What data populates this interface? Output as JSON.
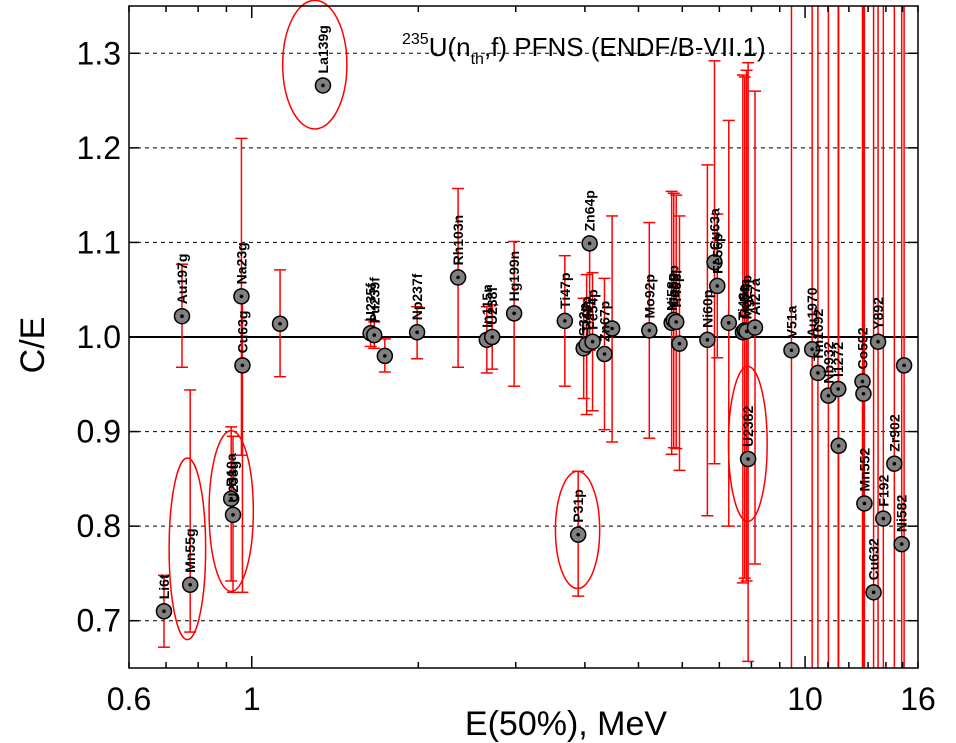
{
  "chart_data": {
    "type": "scatter",
    "title_parts": {
      "pre": "235",
      "main1": "U(n",
      "sub": "th",
      "main2": ",f) PFNS (ENDF/B-VII.1)"
    },
    "xlabel": "E(50%),  MeV",
    "ylabel": "C/E",
    "x_scale": "log",
    "xlim": [
      0.6,
      16
    ],
    "ylim": [
      0.65,
      1.35
    ],
    "x_ticks": [
      {
        "v": 0.6,
        "label": "0.6"
      },
      {
        "v": 1,
        "label": "1"
      },
      {
        "v": 10,
        "label": "10"
      },
      {
        "v": 16,
        "label": "16"
      }
    ],
    "y_ticks": [
      {
        "v": 0.7,
        "label": "0.7"
      },
      {
        "v": 0.8,
        "label": "0.8"
      },
      {
        "v": 0.9,
        "label": "0.9"
      },
      {
        "v": 1.0,
        "label": "1.0"
      },
      {
        "v": 1.1,
        "label": "1.1"
      },
      {
        "v": 1.2,
        "label": "1.2"
      },
      {
        "v": 1.3,
        "label": "1.3"
      }
    ],
    "grid_y": [
      0.7,
      0.8,
      0.9,
      1.1,
      1.2,
      1.3
    ],
    "reference_line": 1.0,
    "circled_labels": [
      "La139g",
      "Mn55g",
      "B10a",
      "U238g",
      "P31p",
      "U2382"
    ],
    "points": [
      {
        "label": "Li6t",
        "x": 0.694,
        "y": 0.71,
        "lo": 0.672,
        "hi": 0.748
      },
      {
        "label": "Au197g",
        "x": 0.748,
        "y": 1.022,
        "lo": 0.968,
        "hi": 1.077
      },
      {
        "label": "Mn55g",
        "x": 0.774,
        "y": 0.738,
        "lo": 0.688,
        "hi": 0.944
      },
      {
        "label": "B10a",
        "x": 0.918,
        "y": 0.829,
        "lo": 0.742,
        "hi": 0.905
      },
      {
        "label": "U238g",
        "x": 0.925,
        "y": 0.812,
        "lo": 0.73,
        "hi": 0.895
      },
      {
        "label": "Na23g",
        "x": 0.958,
        "y": 1.043,
        "lo": 0.875,
        "hi": 1.21
      },
      {
        "label": "Cu63g",
        "x": 0.962,
        "y": 0.97,
        "lo": 0.73,
        "hi": 1.04
      },
      {
        "label": "",
        "x": 1.125,
        "y": 1.014,
        "lo": 0.958,
        "hi": 1.071
      },
      {
        "label": "La139g",
        "x": 1.345,
        "y": 1.266,
        "lo": 1.266,
        "hi": 1.266
      },
      {
        "label": "U235f",
        "x": 1.64,
        "y": 1.004,
        "lo": 0.99,
        "hi": 1.018
      },
      {
        "label": "Pu239f",
        "x": 1.665,
        "y": 1.002,
        "lo": 0.988,
        "hi": 1.016
      },
      {
        "label": "",
        "x": 1.74,
        "y": 0.98,
        "lo": 0.963,
        "hi": 0.998
      },
      {
        "label": "Np237f",
        "x": 1.99,
        "y": 1.005,
        "lo": 0.977,
        "hi": 1.032
      },
      {
        "label": "Rh103n",
        "x": 2.36,
        "y": 1.063,
        "lo": 0.968,
        "hi": 1.157
      },
      {
        "label": "In115n",
        "x": 2.66,
        "y": 0.997,
        "lo": 0.962,
        "hi": 1.032
      },
      {
        "label": "U238f",
        "x": 2.72,
        "y": 1.0,
        "lo": 0.966,
        "hi": 1.034
      },
      {
        "label": "Hg199n",
        "x": 2.98,
        "y": 1.025,
        "lo": 0.948,
        "hi": 1.101
      },
      {
        "label": "Ti47p",
        "x": 3.68,
        "y": 1.017,
        "lo": 0.948,
        "hi": 1.086
      },
      {
        "label": "P31p",
        "x": 3.89,
        "y": 0.791,
        "lo": 0.726,
        "hi": 0.858
      },
      {
        "label": "S32p",
        "x": 3.98,
        "y": 0.988,
        "lo": 0.935,
        "hi": 1.041
      },
      {
        "label": "Zn64p",
        "x": 4.08,
        "y": 1.099,
        "lo": 0.986,
        "hi": 1.1
      },
      {
        "label": "Ti48p",
        "x": 4.03,
        "y": 0.992,
        "lo": 0.918,
        "hi": 1.066
      },
      {
        "label": "Fe54p",
        "x": 4.13,
        "y": 0.995,
        "lo": 0.922,
        "hi": 1.068
      },
      {
        "label": "Zn67p",
        "x": 4.34,
        "y": 0.982,
        "lo": 0.902,
        "hi": 1.062
      },
      {
        "label": "",
        "x": 4.48,
        "y": 1.009,
        "lo": 0.889,
        "hi": 1.128
      },
      {
        "label": "Mo92p",
        "x": 5.23,
        "y": 1.007,
        "lo": 0.893,
        "hi": 1.121
      },
      {
        "label": "Ni58p",
        "x": 5.74,
        "y": 1.015,
        "lo": 0.876,
        "hi": 1.154
      },
      {
        "label": "Co59p",
        "x": 5.79,
        "y": 1.018,
        "lo": 0.883,
        "hi": 1.152
      },
      {
        "label": "Ti46p",
        "x": 5.85,
        "y": 1.016,
        "lo": 0.882,
        "hi": 1.15
      },
      {
        "label": "",
        "x": 5.93,
        "y": 0.993,
        "lo": 0.859,
        "hi": 1.128
      },
      {
        "label": "Ni60p",
        "x": 6.66,
        "y": 0.997,
        "lo": 0.811,
        "hi": 1.182
      },
      {
        "label": "Cu63a",
        "x": 6.86,
        "y": 1.079,
        "lo": 0.866,
        "hi": 1.292
      },
      {
        "label": "Fe56p",
        "x": 6.94,
        "y": 1.054,
        "lo": 0.978,
        "hi": 1.13
      },
      {
        "label": "",
        "x": 7.28,
        "y": 1.015,
        "lo": 0.8,
        "hi": 1.229
      },
      {
        "label": "Ti48n",
        "x": 7.72,
        "y": 1.005,
        "lo": 0.74,
        "hi": 1.277
      },
      {
        "label": "Fe54a",
        "x": 7.78,
        "y": 1.007,
        "lo": 0.745,
        "hi": 1.275
      },
      {
        "label": "Mg24p",
        "x": 7.84,
        "y": 1.006,
        "lo": 0.742,
        "hi": 1.282
      },
      {
        "label": "U2382",
        "x": 7.89,
        "y": 0.871,
        "lo": 0.657,
        "hi": 1.29
      },
      {
        "label": "Al27a",
        "x": 8.12,
        "y": 1.01,
        "lo": 0.76,
        "hi": 1.26
      },
      {
        "label": "V51a",
        "x": 9.45,
        "y": 0.986,
        "lo": 0.65,
        "hi": 1.35
      },
      {
        "label": "Au1970",
        "x": 10.3,
        "y": 0.987,
        "lo": 0.65,
        "hi": 1.35
      },
      {
        "label": "Tm1692",
        "x": 10.55,
        "y": 0.962,
        "lo": 0.65,
        "hi": 1.35
      },
      {
        "label": "Nb932",
        "x": 11.02,
        "y": 0.938,
        "lo": 0.65,
        "hi": 1.35
      },
      {
        "label": "I1272",
        "x": 11.48,
        "y": 0.945,
        "lo": 0.65,
        "hi": 1.35
      },
      {
        "label": "",
        "x": 11.5,
        "y": 0.885,
        "lo": 0.65,
        "hi": 1.35
      },
      {
        "label": "Co592",
        "x": 12.7,
        "y": 0.953,
        "lo": 0.65,
        "hi": 1.35
      },
      {
        "label": "",
        "x": 12.75,
        "y": 0.94,
        "lo": 0.65,
        "hi": 1.35
      },
      {
        "label": "Mn552",
        "x": 12.8,
        "y": 0.824,
        "lo": 0.65,
        "hi": 1.35
      },
      {
        "label": "Cu632",
        "x": 13.3,
        "y": 0.73,
        "lo": 0.65,
        "hi": 1.35
      },
      {
        "label": "Y892",
        "x": 13.55,
        "y": 0.995,
        "lo": 0.65,
        "hi": 1.35
      },
      {
        "label": "F192",
        "x": 13.85,
        "y": 0.808,
        "lo": 0.65,
        "hi": 1.35
      },
      {
        "label": "Zr902",
        "x": 14.5,
        "y": 0.866,
        "lo": 0.65,
        "hi": 1.35
      },
      {
        "label": "Ni582",
        "x": 14.95,
        "y": 0.781,
        "lo": 0.65,
        "hi": 1.35
      },
      {
        "label": "",
        "x": 15.1,
        "y": 0.97,
        "lo": 0.65,
        "hi": 1.35
      }
    ],
    "ellipses": [
      {
        "label": "La139g",
        "cx": 1.3,
        "cy": 1.288,
        "rx_dec": 0.058,
        "ry": 0.068
      },
      {
        "label": "Mn55g",
        "cx": 0.765,
        "cy": 0.776,
        "rx_dec": 0.033,
        "ry": 0.096
      },
      {
        "label": "B10a/U238g",
        "cx": 0.918,
        "cy": 0.816,
        "rx_dec": 0.04,
        "ry": 0.085
      },
      {
        "label": "P31p",
        "cx": 3.88,
        "cy": 0.796,
        "rx_dec": 0.04,
        "ry": 0.062
      },
      {
        "label": "U2382",
        "cx": 7.88,
        "cy": 0.887,
        "rx_dec": 0.035,
        "ry": 0.082
      }
    ],
    "colors": {
      "errorbar": "#ff0000",
      "marker_fill": "#808080",
      "marker_edge": "#000000",
      "ellipse": "#ff0000",
      "grid": "#000000"
    }
  }
}
